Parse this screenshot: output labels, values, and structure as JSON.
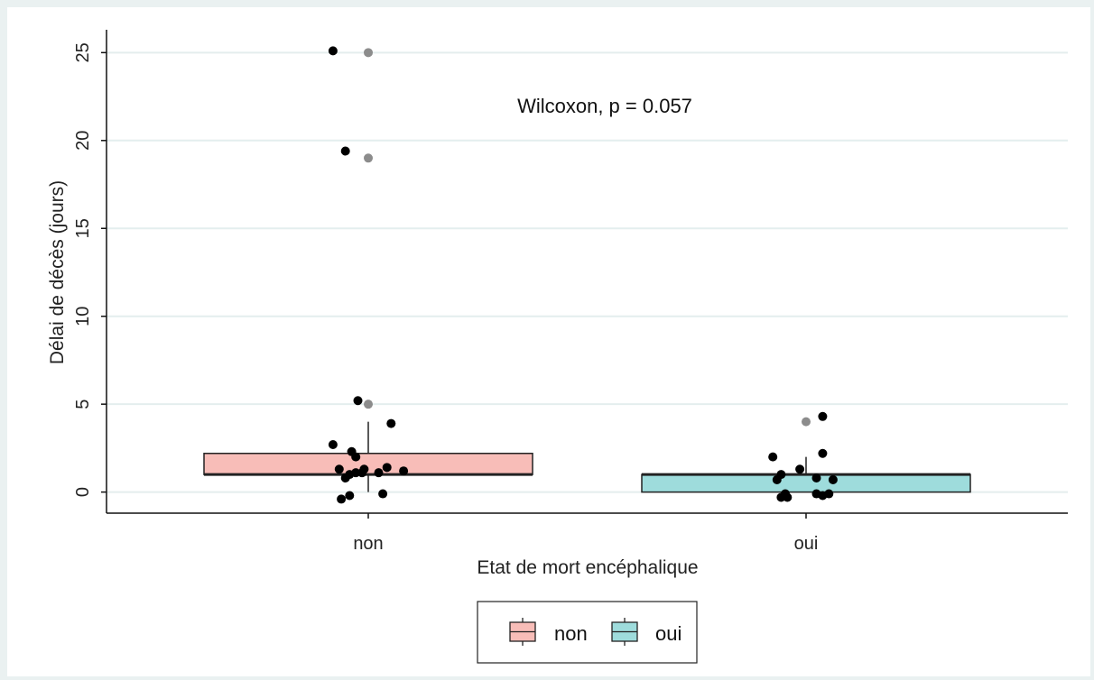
{
  "chart_data": {
    "type": "box",
    "xlabel": "Etat de mort encéphalique",
    "ylabel": "Délai de décès (jours)",
    "yticks": [
      0,
      5,
      10,
      15,
      20,
      25
    ],
    "ylim": [
      -1.2,
      26.3
    ],
    "categories": [
      "non",
      "oui"
    ],
    "annotation": "Wilcoxon, p = 0.057",
    "grid": true,
    "legend": {
      "placement": "bottom",
      "entries": [
        "non",
        "oui"
      ]
    },
    "colors": {
      "non": "#F8BDB8",
      "oui": "#9EDCDC",
      "point": "#000000",
      "outlier": "#8C8C8C",
      "grid": "#E4EEEE",
      "background": "#EAF1F1",
      "panel": "#FFFFFF"
    },
    "boxes": [
      {
        "group": "non",
        "q1": 1.0,
        "median": 1.0,
        "q3": 2.2,
        "whisker_low": 0,
        "whisker_high": 4,
        "outliers": [
          25,
          19,
          5
        ]
      },
      {
        "group": "oui",
        "q1": 0,
        "median": 1.0,
        "q3": 1.0,
        "whisker_low": 0,
        "whisker_high": 2,
        "outliers": [
          4
        ]
      }
    ],
    "points": [
      {
        "group": "non",
        "jitter": -0.17,
        "y": 25.1
      },
      {
        "group": "non",
        "jitter": -0.11,
        "y": 19.4
      },
      {
        "group": "non",
        "jitter": -0.05,
        "y": 5.2
      },
      {
        "group": "non",
        "jitter": 0.11,
        "y": 3.9
      },
      {
        "group": "non",
        "jitter": -0.17,
        "y": 2.7
      },
      {
        "group": "non",
        "jitter": -0.08,
        "y": 2.3
      },
      {
        "group": "non",
        "jitter": -0.06,
        "y": 2.0
      },
      {
        "group": "non",
        "jitter": -0.14,
        "y": 1.3
      },
      {
        "group": "non",
        "jitter": -0.02,
        "y": 1.3
      },
      {
        "group": "non",
        "jitter": 0.09,
        "y": 1.4
      },
      {
        "group": "non",
        "jitter": 0.17,
        "y": 1.2
      },
      {
        "group": "non",
        "jitter": -0.09,
        "y": 1.0
      },
      {
        "group": "non",
        "jitter": -0.06,
        "y": 1.1
      },
      {
        "group": "non",
        "jitter": -0.03,
        "y": 1.1
      },
      {
        "group": "non",
        "jitter": 0.05,
        "y": 1.1
      },
      {
        "group": "non",
        "jitter": -0.11,
        "y": 0.8
      },
      {
        "group": "non",
        "jitter": -0.09,
        "y": -0.2
      },
      {
        "group": "non",
        "jitter": -0.13,
        "y": -0.4
      },
      {
        "group": "non",
        "jitter": 0.07,
        "y": -0.1
      },
      {
        "group": "oui",
        "jitter": 0.08,
        "y": 4.3
      },
      {
        "group": "oui",
        "jitter": 0.08,
        "y": 2.2
      },
      {
        "group": "oui",
        "jitter": -0.16,
        "y": 2.0
      },
      {
        "group": "oui",
        "jitter": -0.03,
        "y": 1.3
      },
      {
        "group": "oui",
        "jitter": -0.12,
        "y": 1.0
      },
      {
        "group": "oui",
        "jitter": -0.14,
        "y": 0.7
      },
      {
        "group": "oui",
        "jitter": 0.05,
        "y": 0.8
      },
      {
        "group": "oui",
        "jitter": 0.13,
        "y": 0.7
      },
      {
        "group": "oui",
        "jitter": -0.1,
        "y": -0.1
      },
      {
        "group": "oui",
        "jitter": -0.12,
        "y": -0.3
      },
      {
        "group": "oui",
        "jitter": -0.09,
        "y": -0.3
      },
      {
        "group": "oui",
        "jitter": 0.05,
        "y": -0.1
      },
      {
        "group": "oui",
        "jitter": 0.08,
        "y": -0.2
      },
      {
        "group": "oui",
        "jitter": 0.11,
        "y": -0.1
      }
    ]
  }
}
